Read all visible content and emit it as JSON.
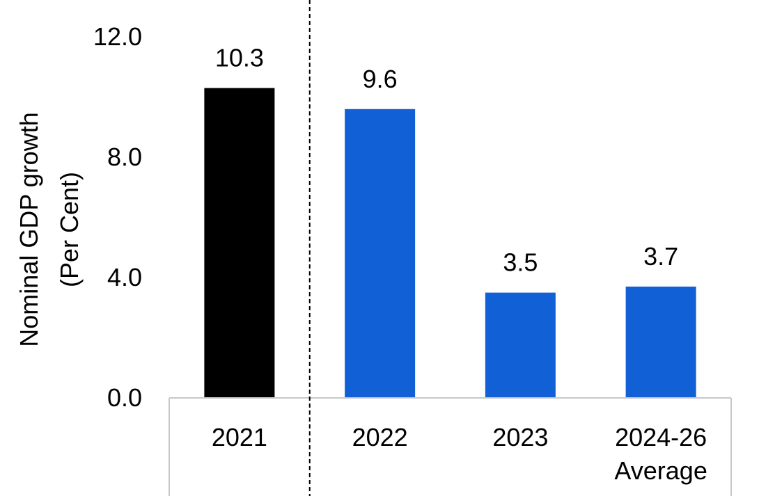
{
  "chart_data": {
    "type": "bar",
    "title": "",
    "xlabel": "",
    "ylabel_lines": [
      "Nominal GDP growth",
      "(Per Cent)"
    ],
    "categories": [
      [
        "2021"
      ],
      [
        "2022"
      ],
      [
        "2023"
      ],
      [
        "2024-26",
        "Average"
      ]
    ],
    "values": [
      10.3,
      9.6,
      3.5,
      3.7
    ],
    "value_labels": [
      "10.3",
      "9.6",
      "3.5",
      "3.7"
    ],
    "bar_colors": [
      "#000000",
      "#1260D6",
      "#1260D6",
      "#1260D6"
    ],
    "ylim": [
      0,
      12
    ],
    "yticks": [
      0,
      4,
      8,
      12
    ],
    "ytick_labels": [
      "0.0",
      "4.0",
      "8.0",
      "12.0"
    ],
    "grid": false,
    "legend": "none",
    "divider_after_category_index": 0
  }
}
